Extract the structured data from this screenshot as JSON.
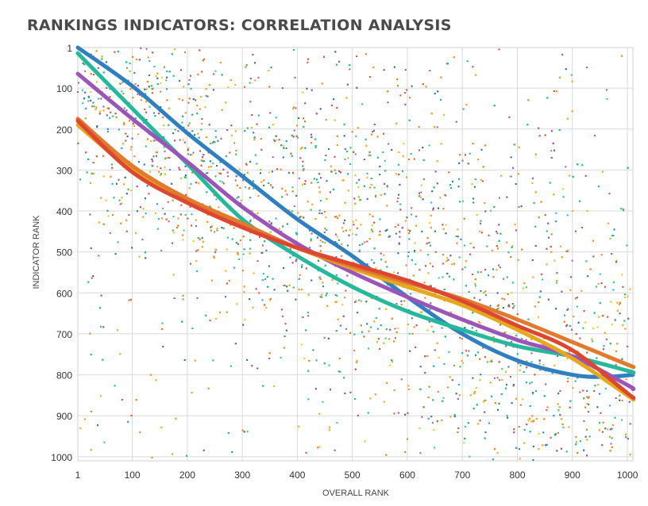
{
  "chart_data": {
    "type": "scatter",
    "title": "RANKINGS INDICATORS: CORRELATION ANALYSIS",
    "xlabel": "OVERALL RANK",
    "ylabel": "INDICATOR RANK",
    "xlim": [
      1,
      1010
    ],
    "ylim": [
      1,
      1010
    ],
    "y_reversed": true,
    "grid": true,
    "legend": "none",
    "x_ticks": [
      1,
      100,
      200,
      300,
      400,
      500,
      600,
      700,
      800,
      900,
      1000
    ],
    "y_ticks": [
      1,
      100,
      200,
      300,
      400,
      500,
      600,
      700,
      800,
      900,
      1000
    ],
    "point_colors": [
      "#1f77b4",
      "#e74c3c",
      "#f39c12",
      "#2ecc71",
      "#9b59b6",
      "#e67e22",
      "#1abc9c",
      "#f1c40f"
    ],
    "scatter_point_count": 5000,
    "trend_lines": [
      {
        "color": "#2f7fc1",
        "x": [
          1,
          100,
          200,
          300,
          400,
          500,
          600,
          700,
          800,
          900,
          960,
          1010
        ],
        "y": [
          1,
          95,
          210,
          315,
          420,
          510,
          610,
          700,
          765,
          800,
          805,
          800
        ]
      },
      {
        "color": "#26b89b",
        "x": [
          1,
          100,
          200,
          300,
          400,
          500,
          600,
          700,
          800,
          900,
          1000,
          1010
        ],
        "y": [
          15,
          150,
          285,
          420,
          510,
          585,
          645,
          690,
          730,
          755,
          790,
          795
        ]
      },
      {
        "color": "#9b55b8",
        "x": [
          1,
          100,
          200,
          300,
          400,
          500,
          600,
          700,
          800,
          900,
          1000,
          1010
        ],
        "y": [
          65,
          175,
          280,
          390,
          480,
          550,
          610,
          665,
          715,
          755,
          825,
          835
        ]
      },
      {
        "color": "#e5a81c",
        "x": [
          1,
          100,
          200,
          300,
          400,
          500,
          600,
          700,
          800,
          900,
          1000,
          1010
        ],
        "y": [
          190,
          300,
          375,
          435,
          490,
          540,
          585,
          630,
          690,
          760,
          850,
          860
        ]
      },
      {
        "color": "#e07b2e",
        "x": [
          1,
          100,
          200,
          300,
          400,
          500,
          600,
          700,
          800,
          900,
          1000,
          1010
        ],
        "y": [
          175,
          290,
          370,
          430,
          490,
          535,
          575,
          615,
          665,
          720,
          775,
          780
        ]
      },
      {
        "color": "#dd4732",
        "x": [
          1,
          100,
          200,
          300,
          400,
          500,
          600,
          700,
          800,
          900,
          1000,
          1010
        ],
        "y": [
          180,
          305,
          380,
          440,
          490,
          530,
          570,
          620,
          680,
          740,
          845,
          855
        ]
      }
    ]
  }
}
